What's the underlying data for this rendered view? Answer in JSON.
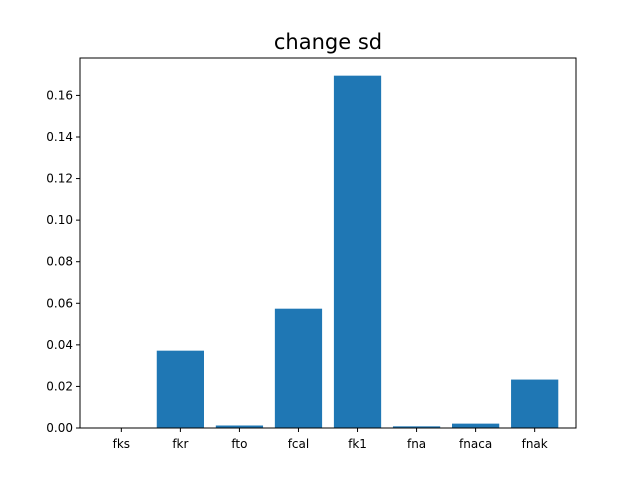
{
  "chart_data": {
    "type": "bar",
    "title": "change sd",
    "xlabel": "",
    "ylabel": "",
    "categories": [
      "fks",
      "fkr",
      "fto",
      "fcal",
      "fk1",
      "fna",
      "fnaca",
      "fnak"
    ],
    "values": [
      0.0,
      0.0372,
      0.0012,
      0.0574,
      0.1695,
      0.0008,
      0.0021,
      0.0233
    ],
    "ylim": [
      0,
      0.178
    ],
    "yticks": [
      0.0,
      0.02,
      0.04,
      0.06,
      0.08,
      0.1,
      0.12,
      0.14,
      0.16
    ],
    "ytick_labels": [
      "0.00",
      "0.02",
      "0.04",
      "0.06",
      "0.08",
      "0.10",
      "0.12",
      "0.14",
      "0.16"
    ],
    "bar_color": "#1f77b4",
    "grid": false,
    "legend": "none"
  }
}
